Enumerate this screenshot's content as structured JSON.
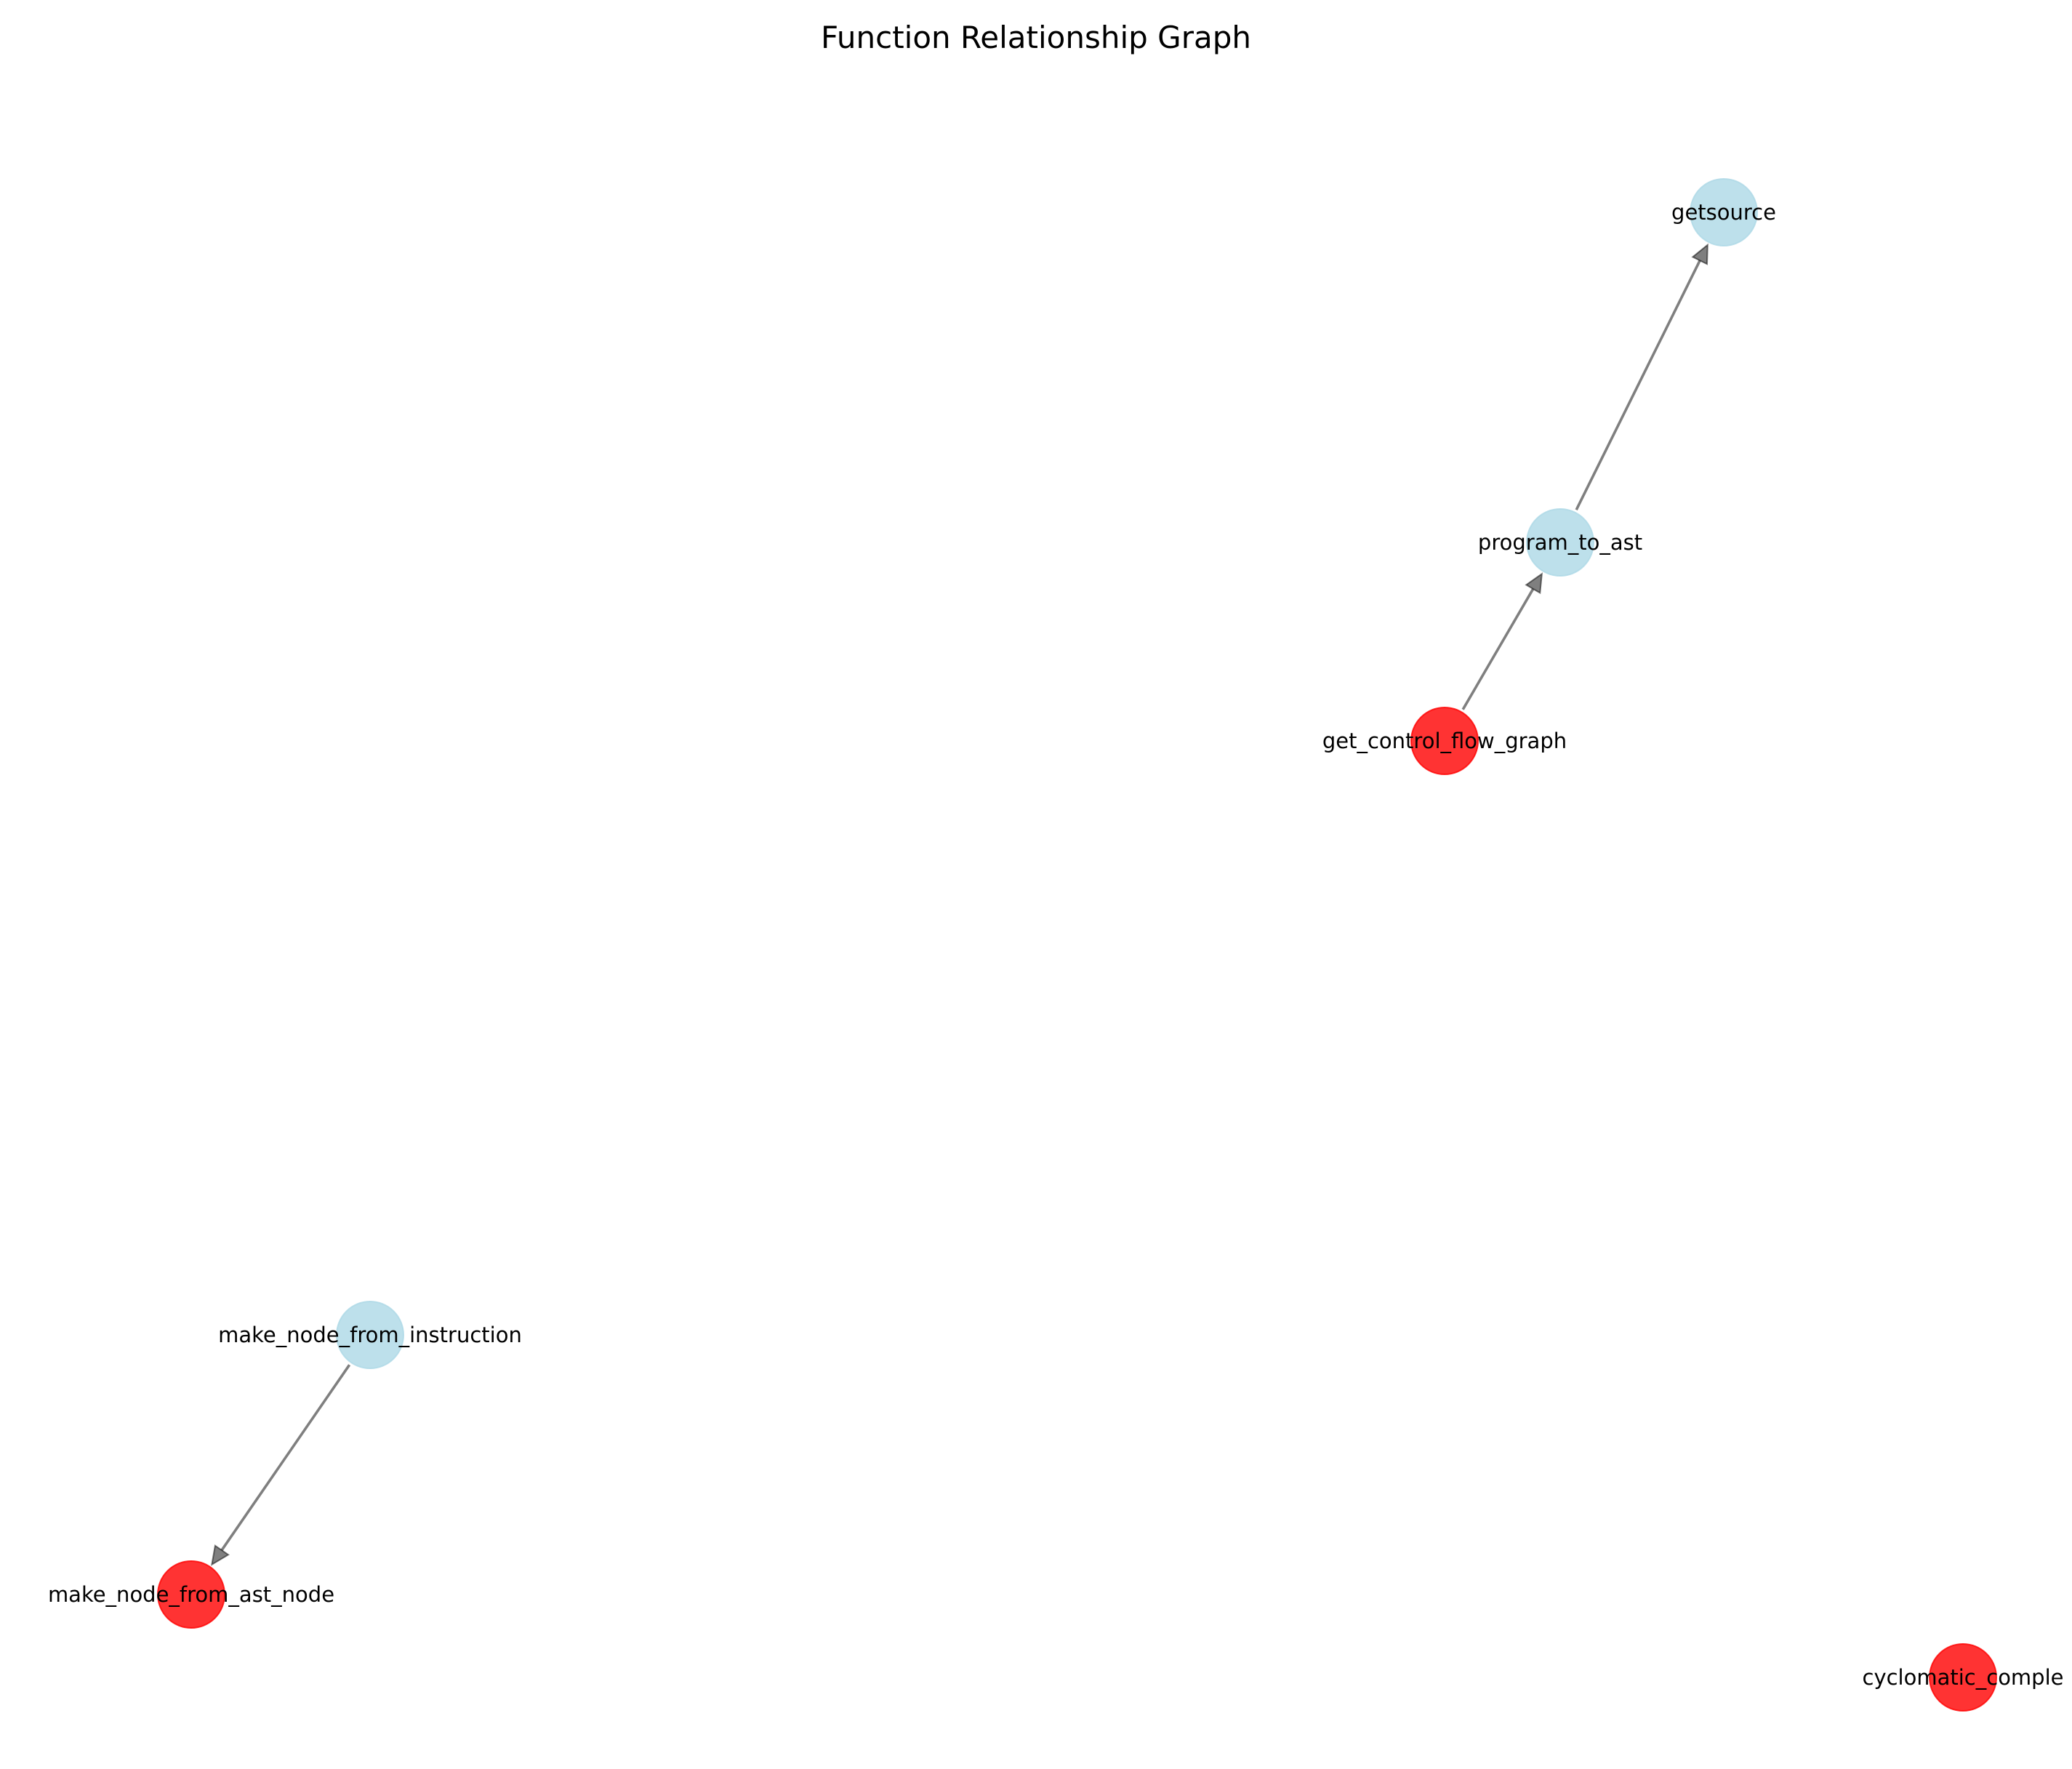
{
  "title": "Function Relationship Graph",
  "colors": {
    "default_node": "#add8e6",
    "highlight_node": "#ff0000"
  },
  "nodes": [
    {
      "id": "getsource",
      "label": "getsource",
      "color": "#add8e6"
    },
    {
      "id": "program_to_ast",
      "label": "program_to_ast",
      "color": "#add8e6"
    },
    {
      "id": "get_control_flow_graph",
      "label": "get_control_flow_graph",
      "color": "#ff0000"
    },
    {
      "id": "make_node_from_instruction",
      "label": "make_node_from_instruction",
      "color": "#add8e6"
    },
    {
      "id": "make_node_from_ast_node",
      "label": "make_node_from_ast_node",
      "color": "#ff0000"
    },
    {
      "id": "cyclomatic_complexity",
      "label": "cyclomatic_comple",
      "color": "#ff0000"
    }
  ],
  "edges": [
    {
      "from": "program_to_ast",
      "to": "getsource"
    },
    {
      "from": "get_control_flow_graph",
      "to": "program_to_ast"
    },
    {
      "from": "make_node_from_instruction",
      "to": "make_node_from_ast_node"
    }
  ]
}
